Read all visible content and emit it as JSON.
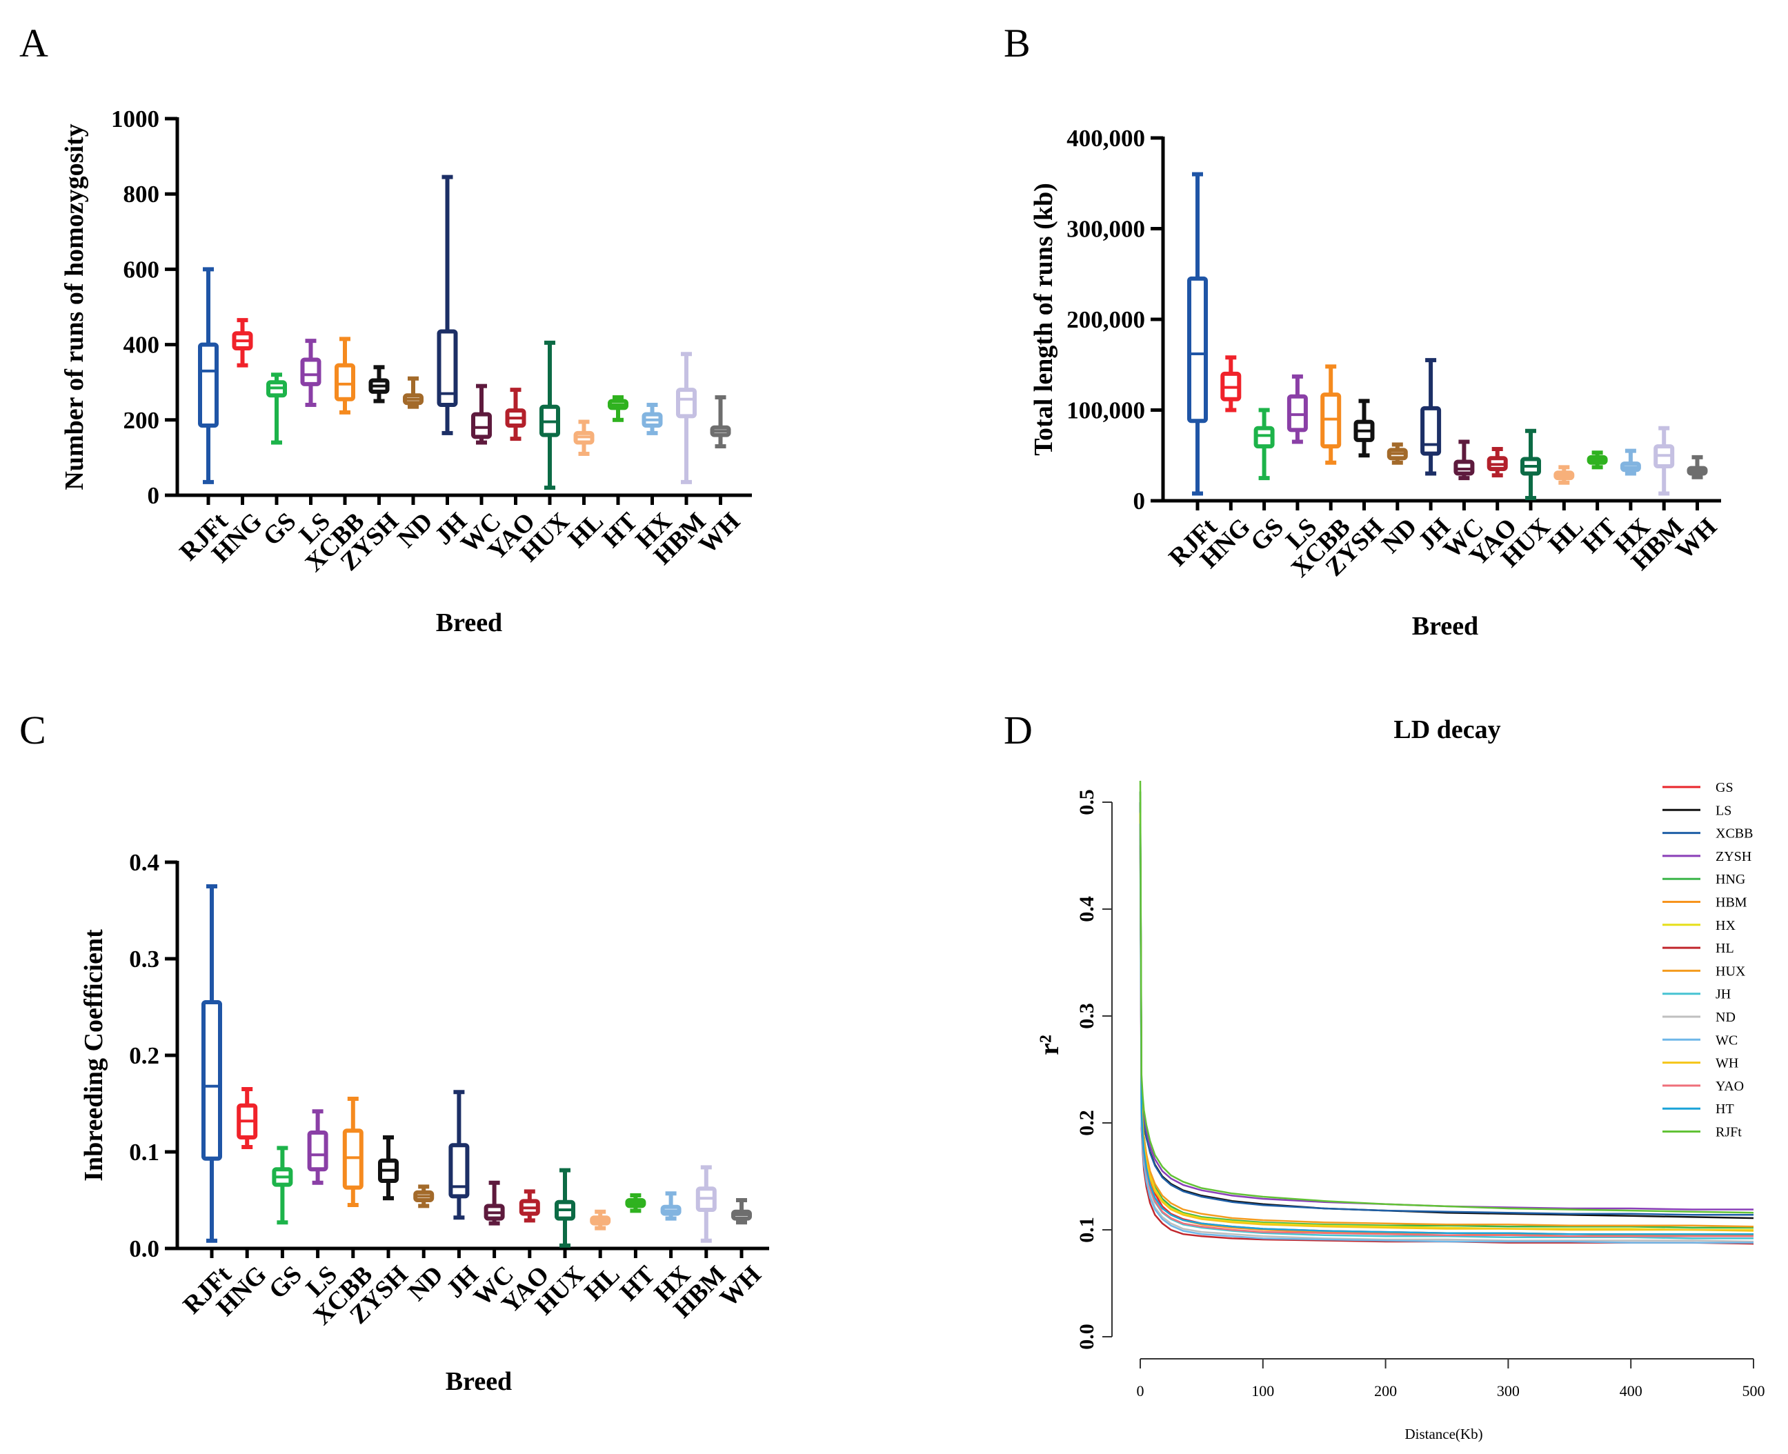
{
  "panels": {
    "a": "A",
    "b": "B",
    "c": "C",
    "d": "D"
  },
  "chart_data": [
    {
      "type": "box",
      "panel": "A",
      "title": "",
      "xlabel": "Breed",
      "ylabel": "Number of runs of homozygosity",
      "ylim": [
        0,
        1000
      ],
      "yticks": [
        0,
        200,
        400,
        600,
        800,
        1000
      ],
      "ytick_labels": [
        "0",
        "200",
        "400",
        "600",
        "800",
        "1000"
      ],
      "categories": [
        "RJFt",
        "HNG",
        "GS",
        "LS",
        "XCBB",
        "ZYSH",
        "ND",
        "JH",
        "WC",
        "YAO",
        "HUX",
        "HL",
        "HT",
        "HX",
        "HBM",
        "WH"
      ],
      "colors": [
        "#1f55a6",
        "#f0222a",
        "#1db34a",
        "#8a3fa6",
        "#f58a1f",
        "#111111",
        "#a36a2a",
        "#1c2f66",
        "#5e1a3d",
        "#b3202b",
        "#0c6b45",
        "#f7b07a",
        "#2fb21f",
        "#82b4e0",
        "#c5c0e2",
        "#6e6e6e"
      ],
      "boxes": [
        {
          "min": 35,
          "q1": 185,
          "median": 330,
          "q3": 400,
          "max": 600
        },
        {
          "min": 345,
          "q1": 390,
          "median": 410,
          "q3": 430,
          "max": 465
        },
        {
          "min": 140,
          "q1": 265,
          "median": 285,
          "q3": 300,
          "max": 320
        },
        {
          "min": 240,
          "q1": 295,
          "median": 320,
          "q3": 360,
          "max": 410
        },
        {
          "min": 220,
          "q1": 255,
          "median": 295,
          "q3": 345,
          "max": 415
        },
        {
          "min": 250,
          "q1": 275,
          "median": 290,
          "q3": 305,
          "max": 340
        },
        {
          "min": 235,
          "q1": 245,
          "median": 255,
          "q3": 265,
          "max": 310
        },
        {
          "min": 165,
          "q1": 240,
          "median": 270,
          "q3": 435,
          "max": 845
        },
        {
          "min": 140,
          "q1": 155,
          "median": 180,
          "q3": 215,
          "max": 290
        },
        {
          "min": 150,
          "q1": 185,
          "median": 205,
          "q3": 225,
          "max": 280
        },
        {
          "min": 20,
          "q1": 160,
          "median": 195,
          "q3": 235,
          "max": 405
        },
        {
          "min": 110,
          "q1": 140,
          "median": 155,
          "q3": 165,
          "max": 195
        },
        {
          "min": 200,
          "q1": 232,
          "median": 240,
          "q3": 250,
          "max": 260
        },
        {
          "min": 165,
          "q1": 185,
          "median": 200,
          "q3": 215,
          "max": 240
        },
        {
          "min": 35,
          "q1": 210,
          "median": 255,
          "q3": 280,
          "max": 375
        },
        {
          "min": 130,
          "q1": 160,
          "median": 170,
          "q3": 180,
          "max": 260
        }
      ]
    },
    {
      "type": "box",
      "panel": "B",
      "title": "",
      "xlabel": "Breed",
      "ylabel": "Total length of runs (kb)",
      "ylim": [
        0,
        400000
      ],
      "yticks": [
        0,
        100000,
        200000,
        300000,
        400000
      ],
      "ytick_labels": [
        "0",
        "100,000",
        "200,000",
        "300,000",
        "400,000"
      ],
      "categories": [
        "RJFt",
        "HNG",
        "GS",
        "LS",
        "XCBB",
        "ZYSH",
        "ND",
        "JH",
        "WC",
        "YAO",
        "HUX",
        "HL",
        "HT",
        "HX",
        "HBM",
        "WH"
      ],
      "colors": [
        "#1f55a6",
        "#f0222a",
        "#1db34a",
        "#8a3fa6",
        "#f58a1f",
        "#111111",
        "#a36a2a",
        "#1c2f66",
        "#5e1a3d",
        "#b3202b",
        "#0c6b45",
        "#f7b07a",
        "#2fb21f",
        "#82b4e0",
        "#c5c0e2",
        "#6e6e6e"
      ],
      "boxes": [
        {
          "min": 8000,
          "q1": 88000,
          "median": 162000,
          "q3": 245000,
          "max": 360000
        },
        {
          "min": 100000,
          "q1": 112000,
          "median": 125000,
          "q3": 140000,
          "max": 158000
        },
        {
          "min": 25000,
          "q1": 60000,
          "median": 72000,
          "q3": 80000,
          "max": 100000
        },
        {
          "min": 65000,
          "q1": 78000,
          "median": 95000,
          "q3": 115000,
          "max": 137000
        },
        {
          "min": 42000,
          "q1": 60000,
          "median": 90000,
          "q3": 117000,
          "max": 148000
        },
        {
          "min": 50000,
          "q1": 67000,
          "median": 77000,
          "q3": 87000,
          "max": 110000
        },
        {
          "min": 42000,
          "q1": 47000,
          "median": 52000,
          "q3": 56000,
          "max": 62000
        },
        {
          "min": 30000,
          "q1": 52000,
          "median": 62000,
          "q3": 102000,
          "max": 155000
        },
        {
          "min": 25000,
          "q1": 30000,
          "median": 35000,
          "q3": 43000,
          "max": 65000
        },
        {
          "min": 28000,
          "q1": 35000,
          "median": 40000,
          "q3": 47000,
          "max": 57000
        },
        {
          "min": 3000,
          "q1": 30000,
          "median": 38000,
          "q3": 46000,
          "max": 77000
        },
        {
          "min": 20000,
          "q1": 25000,
          "median": 28000,
          "q3": 31000,
          "max": 37000
        },
        {
          "min": 37000,
          "q1": 42000,
          "median": 45000,
          "q3": 48000,
          "max": 53000
        },
        {
          "min": 30000,
          "q1": 34000,
          "median": 37000,
          "q3": 41000,
          "max": 55000
        },
        {
          "min": 8000,
          "q1": 38000,
          "median": 50000,
          "q3": 60000,
          "max": 80000
        },
        {
          "min": 26000,
          "q1": 30000,
          "median": 33000,
          "q3": 36000,
          "max": 48000
        }
      ]
    },
    {
      "type": "box",
      "panel": "C",
      "title": "",
      "xlabel": "Breed",
      "ylabel": "Inbreeding Coefficient",
      "ylim": [
        0,
        0.4
      ],
      "yticks": [
        0,
        0.1,
        0.2,
        0.3,
        0.4
      ],
      "ytick_labels": [
        "0.0",
        "0.1",
        "0.2",
        "0.3",
        "0.4"
      ],
      "categories": [
        "RJFt",
        "HNG",
        "GS",
        "LS",
        "XCBB",
        "ZYSH",
        "ND",
        "JH",
        "WC",
        "YAO",
        "HUX",
        "HL",
        "HT",
        "HX",
        "HBM",
        "WH"
      ],
      "colors": [
        "#1f55a6",
        "#f0222a",
        "#1db34a",
        "#8a3fa6",
        "#f58a1f",
        "#111111",
        "#a36a2a",
        "#1c2f66",
        "#5e1a3d",
        "#b3202b",
        "#0c6b45",
        "#f7b07a",
        "#2fb21f",
        "#82b4e0",
        "#c5c0e2",
        "#6e6e6e"
      ],
      "boxes": [
        {
          "min": 0.008,
          "q1": 0.093,
          "median": 0.168,
          "q3": 0.255,
          "max": 0.375
        },
        {
          "min": 0.105,
          "q1": 0.115,
          "median": 0.132,
          "q3": 0.148,
          "max": 0.165
        },
        {
          "min": 0.027,
          "q1": 0.066,
          "median": 0.074,
          "q3": 0.082,
          "max": 0.104
        },
        {
          "min": 0.068,
          "q1": 0.082,
          "median": 0.097,
          "q3": 0.12,
          "max": 0.142
        },
        {
          "min": 0.045,
          "q1": 0.063,
          "median": 0.094,
          "q3": 0.122,
          "max": 0.155
        },
        {
          "min": 0.052,
          "q1": 0.07,
          "median": 0.081,
          "q3": 0.091,
          "max": 0.115
        },
        {
          "min": 0.044,
          "q1": 0.05,
          "median": 0.054,
          "q3": 0.058,
          "max": 0.064
        },
        {
          "min": 0.032,
          "q1": 0.054,
          "median": 0.064,
          "q3": 0.107,
          "max": 0.162
        },
        {
          "min": 0.026,
          "q1": 0.031,
          "median": 0.037,
          "q3": 0.044,
          "max": 0.068
        },
        {
          "min": 0.029,
          "q1": 0.036,
          "median": 0.042,
          "q3": 0.049,
          "max": 0.059
        },
        {
          "min": 0.003,
          "q1": 0.031,
          "median": 0.04,
          "q3": 0.048,
          "max": 0.081
        },
        {
          "min": 0.021,
          "q1": 0.026,
          "median": 0.029,
          "q3": 0.032,
          "max": 0.038
        },
        {
          "min": 0.039,
          "q1": 0.044,
          "median": 0.047,
          "q3": 0.05,
          "max": 0.055
        },
        {
          "min": 0.031,
          "q1": 0.036,
          "median": 0.039,
          "q3": 0.043,
          "max": 0.057
        },
        {
          "min": 0.008,
          "q1": 0.04,
          "median": 0.052,
          "q3": 0.062,
          "max": 0.084
        },
        {
          "min": 0.027,
          "q1": 0.031,
          "median": 0.035,
          "q3": 0.038,
          "max": 0.05
        }
      ]
    },
    {
      "type": "line",
      "panel": "D",
      "title": "LD decay",
      "xlabel": "Distance(Kb)",
      "ylabel": "r²",
      "xlim": [
        0,
        500
      ],
      "ylim": [
        0,
        0.5
      ],
      "xticks": [
        0,
        100,
        200,
        300,
        400,
        500
      ],
      "yticks": [
        0.0,
        0.1,
        0.2,
        0.3,
        0.4,
        0.5
      ],
      "ytick_labels": [
        "0.0",
        "0.1",
        "0.2",
        "0.3",
        "0.4",
        "0.5"
      ],
      "x": [
        0,
        1,
        2,
        3,
        5,
        8,
        12,
        18,
        25,
        35,
        50,
        75,
        100,
        150,
        200,
        250,
        300,
        350,
        400,
        450,
        500
      ],
      "series": [
        {
          "name": "GS",
          "color": "#e8262b",
          "values": [
            0.47,
            0.215,
            0.195,
            0.182,
            0.165,
            0.148,
            0.134,
            0.122,
            0.115,
            0.11,
            0.106,
            0.103,
            0.101,
            0.099,
            0.098,
            0.097,
            0.097,
            0.096,
            0.096,
            0.096,
            0.095
          ]
        },
        {
          "name": "LS",
          "color": "#111111",
          "values": [
            0.5,
            0.225,
            0.208,
            0.198,
            0.186,
            0.173,
            0.161,
            0.15,
            0.143,
            0.137,
            0.132,
            0.127,
            0.124,
            0.12,
            0.118,
            0.116,
            0.115,
            0.114,
            0.113,
            0.112,
            0.111
          ]
        },
        {
          "name": "XCBB",
          "color": "#1f5fa6",
          "values": [
            0.5,
            0.23,
            0.212,
            0.2,
            0.187,
            0.172,
            0.16,
            0.149,
            0.142,
            0.136,
            0.131,
            0.126,
            0.123,
            0.12,
            0.118,
            0.117,
            0.116,
            0.115,
            0.115,
            0.114,
            0.114
          ]
        },
        {
          "name": "ZYSH",
          "color": "#8a3fb8",
          "values": [
            0.51,
            0.24,
            0.22,
            0.207,
            0.193,
            0.178,
            0.166,
            0.155,
            0.148,
            0.142,
            0.137,
            0.132,
            0.129,
            0.126,
            0.124,
            0.122,
            0.121,
            0.12,
            0.12,
            0.119,
            0.119
          ]
        },
        {
          "name": "HNG",
          "color": "#3cb54a",
          "values": [
            0.51,
            0.235,
            0.205,
            0.188,
            0.17,
            0.153,
            0.14,
            0.129,
            0.122,
            0.116,
            0.112,
            0.109,
            0.107,
            0.105,
            0.104,
            0.104,
            0.103,
            0.103,
            0.103,
            0.102,
            0.102
          ]
        },
        {
          "name": "HBM",
          "color": "#f7941d",
          "values": [
            0.48,
            0.21,
            0.19,
            0.176,
            0.16,
            0.143,
            0.13,
            0.12,
            0.114,
            0.109,
            0.105,
            0.102,
            0.1,
            0.098,
            0.097,
            0.097,
            0.096,
            0.096,
            0.095,
            0.095,
            0.095
          ]
        },
        {
          "name": "HX",
          "color": "#e6df1a",
          "values": [
            0.49,
            0.218,
            0.197,
            0.183,
            0.167,
            0.151,
            0.138,
            0.127,
            0.12,
            0.115,
            0.111,
            0.108,
            0.106,
            0.104,
            0.103,
            0.102,
            0.101,
            0.101,
            0.101,
            0.1,
            0.1
          ]
        },
        {
          "name": "HL",
          "color": "#c1272d",
          "values": [
            0.46,
            0.195,
            0.172,
            0.156,
            0.14,
            0.125,
            0.114,
            0.106,
            0.1,
            0.096,
            0.094,
            0.092,
            0.091,
            0.09,
            0.089,
            0.089,
            0.088,
            0.088,
            0.088,
            0.088,
            0.087
          ]
        },
        {
          "name": "HUX",
          "color": "#f49b1e",
          "values": [
            0.49,
            0.22,
            0.199,
            0.186,
            0.171,
            0.155,
            0.143,
            0.132,
            0.125,
            0.119,
            0.115,
            0.111,
            0.109,
            0.107,
            0.106,
            0.105,
            0.105,
            0.104,
            0.104,
            0.104,
            0.103
          ]
        },
        {
          "name": "JH",
          "color": "#47c3d3",
          "values": [
            0.48,
            0.205,
            0.184,
            0.17,
            0.154,
            0.138,
            0.126,
            0.116,
            0.11,
            0.105,
            0.102,
            0.099,
            0.097,
            0.095,
            0.094,
            0.094,
            0.093,
            0.093,
            0.093,
            0.092,
            0.092
          ]
        },
        {
          "name": "ND",
          "color": "#bfbfbf",
          "values": [
            0.47,
            0.2,
            0.179,
            0.164,
            0.148,
            0.133,
            0.121,
            0.112,
            0.106,
            0.101,
            0.098,
            0.096,
            0.094,
            0.092,
            0.091,
            0.091,
            0.09,
            0.09,
            0.09,
            0.09,
            0.089
          ]
        },
        {
          "name": "WC",
          "color": "#6fb7e8",
          "values": [
            0.47,
            0.198,
            0.176,
            0.161,
            0.145,
            0.13,
            0.119,
            0.11,
            0.104,
            0.099,
            0.096,
            0.094,
            0.092,
            0.091,
            0.09,
            0.089,
            0.089,
            0.089,
            0.088,
            0.088,
            0.088
          ]
        },
        {
          "name": "WH",
          "color": "#f5c518",
          "values": [
            0.49,
            0.215,
            0.194,
            0.18,
            0.165,
            0.149,
            0.136,
            0.126,
            0.119,
            0.114,
            0.11,
            0.107,
            0.105,
            0.103,
            0.102,
            0.101,
            0.101,
            0.1,
            0.1,
            0.1,
            0.099
          ]
        },
        {
          "name": "YAO",
          "color": "#ef6f7a",
          "values": [
            0.48,
            0.208,
            0.186,
            0.171,
            0.155,
            0.139,
            0.127,
            0.117,
            0.111,
            0.106,
            0.103,
            0.1,
            0.098,
            0.097,
            0.096,
            0.095,
            0.095,
            0.094,
            0.094,
            0.094,
            0.094
          ]
        },
        {
          "name": "HT",
          "color": "#1ba3d8",
          "values": [
            0.48,
            0.21,
            0.188,
            0.174,
            0.158,
            0.142,
            0.13,
            0.12,
            0.114,
            0.109,
            0.106,
            0.103,
            0.101,
            0.099,
            0.098,
            0.097,
            0.097,
            0.096,
            0.096,
            0.096,
            0.096
          ]
        },
        {
          "name": "RJFt",
          "color": "#62c236",
          "values": [
            0.52,
            0.245,
            0.225,
            0.212,
            0.198,
            0.183,
            0.17,
            0.159,
            0.151,
            0.145,
            0.139,
            0.134,
            0.131,
            0.127,
            0.124,
            0.122,
            0.12,
            0.119,
            0.118,
            0.117,
            0.116
          ]
        }
      ]
    }
  ]
}
